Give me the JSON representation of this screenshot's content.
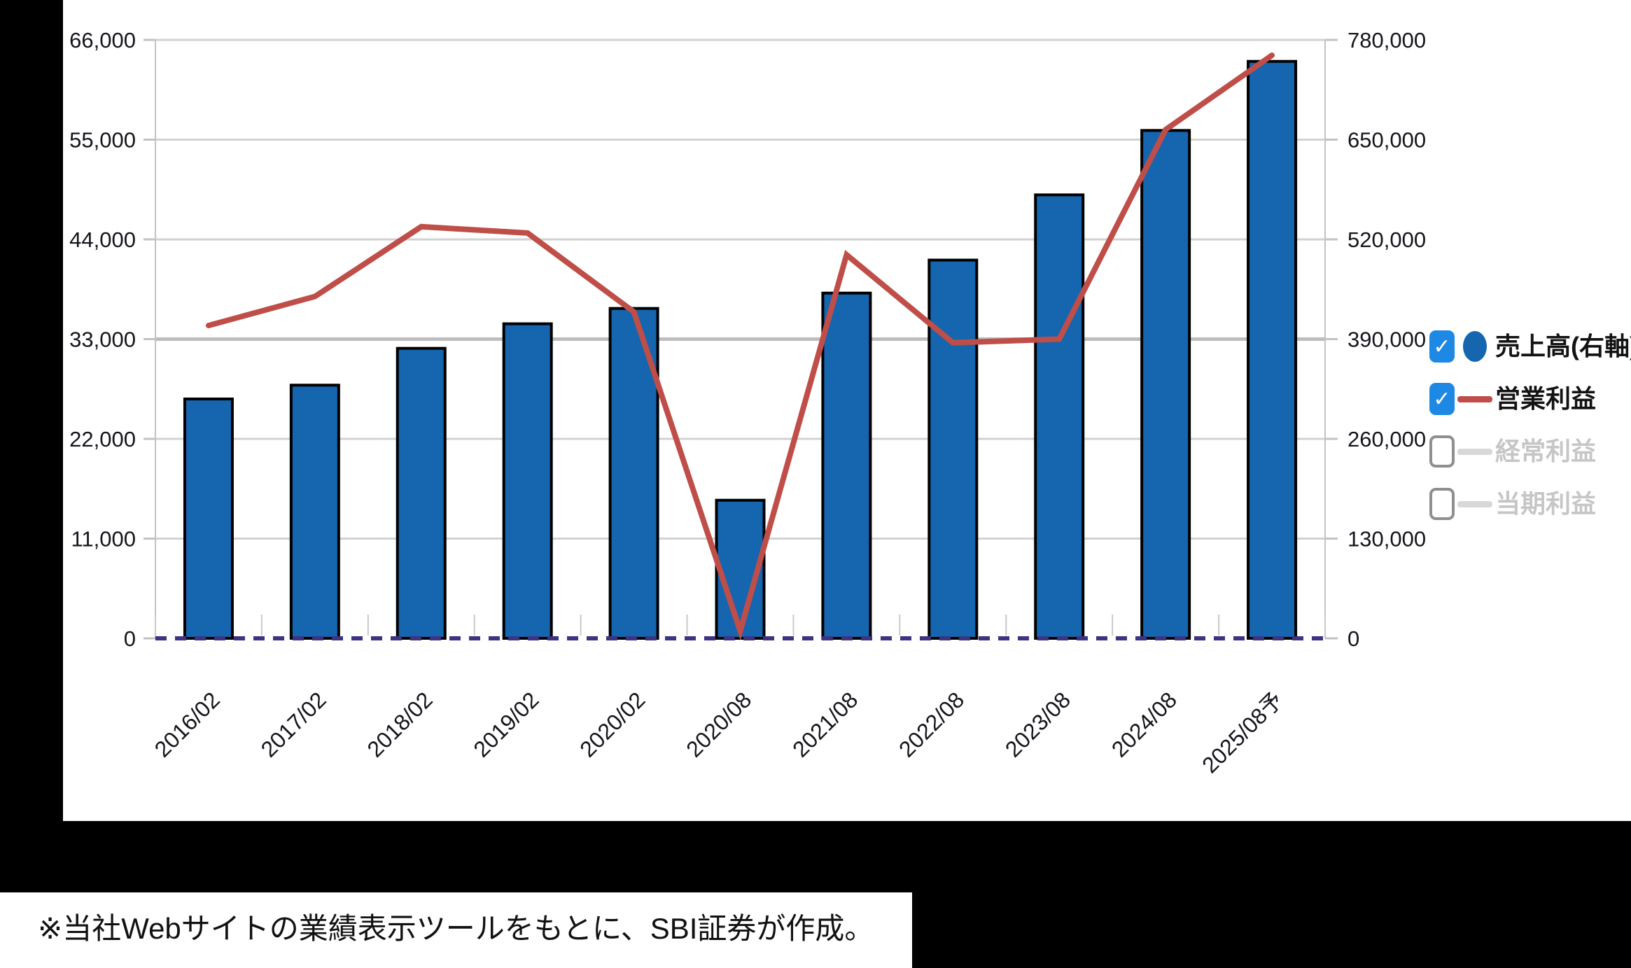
{
  "note": {
    "text": "※当社Webサイトの業績表示ツールをもとに、SBI証券が作成。"
  },
  "legend": {
    "items": [
      {
        "label": "売上高(右軸)",
        "checked": true,
        "marker": "circle",
        "marker_color": "#1565af",
        "text_color": "#131313"
      },
      {
        "label": "営業利益",
        "checked": true,
        "marker": "line",
        "marker_color": "#bf4e49",
        "text_color": "#131313"
      },
      {
        "label": "経常利益",
        "checked": false,
        "marker": "line",
        "marker_color": "#d8d8d8",
        "text_color": "#c6c6c6"
      },
      {
        "label": "当期利益",
        "checked": false,
        "marker": "line",
        "marker_color": "#d8d8d8",
        "text_color": "#c6c6c6"
      }
    ]
  },
  "chart_data": {
    "type": "bar+line",
    "categories": [
      "2016/02",
      "2017/02",
      "2018/02",
      "2019/02",
      "2020/02",
      "2020/08",
      "2021/08",
      "2022/08",
      "2023/08",
      "2024/08",
      "2025/08予"
    ],
    "series": [
      {
        "name": "売上高(右軸)",
        "type": "bar",
        "axis": "right",
        "values": [
          312000,
          330000,
          378000,
          410000,
          430000,
          180000,
          450000,
          493000,
          578000,
          662000,
          752000
        ]
      },
      {
        "name": "営業利益",
        "type": "line",
        "axis": "left",
        "values": [
          34500,
          37700,
          45400,
          44700,
          36000,
          800,
          42300,
          32600,
          33000,
          56100,
          64300
        ]
      }
    ],
    "left_axis": {
      "ticks": [
        "0",
        "11,000",
        "22,000",
        "33,000",
        "44,000",
        "55,000",
        "66,000"
      ],
      "max": 66000,
      "lim": [
        0,
        66000
      ]
    },
    "right_axis": {
      "ticks": [
        "0",
        "130,000",
        "260,000",
        "390,000",
        "520,000",
        "650,000",
        "780,000"
      ],
      "max": 780000,
      "lim": [
        0,
        780000
      ]
    },
    "title": "",
    "xlabel": "",
    "ylabel": "",
    "grid": true,
    "legend_position": "right"
  },
  "colors": {
    "bar_fill": "#1565af",
    "bar_stroke": "#000000",
    "line": "#bf4e49",
    "grid_minor": "#d2d2d2",
    "grid_major": "#bdbdbd",
    "axis_line": "#c2c2c2",
    "zero_dash": "#3d3383",
    "tick_text": "#14141c",
    "checkbox_blue": "#1e88e5",
    "background": "#000000",
    "panel": "#ffffff"
  }
}
